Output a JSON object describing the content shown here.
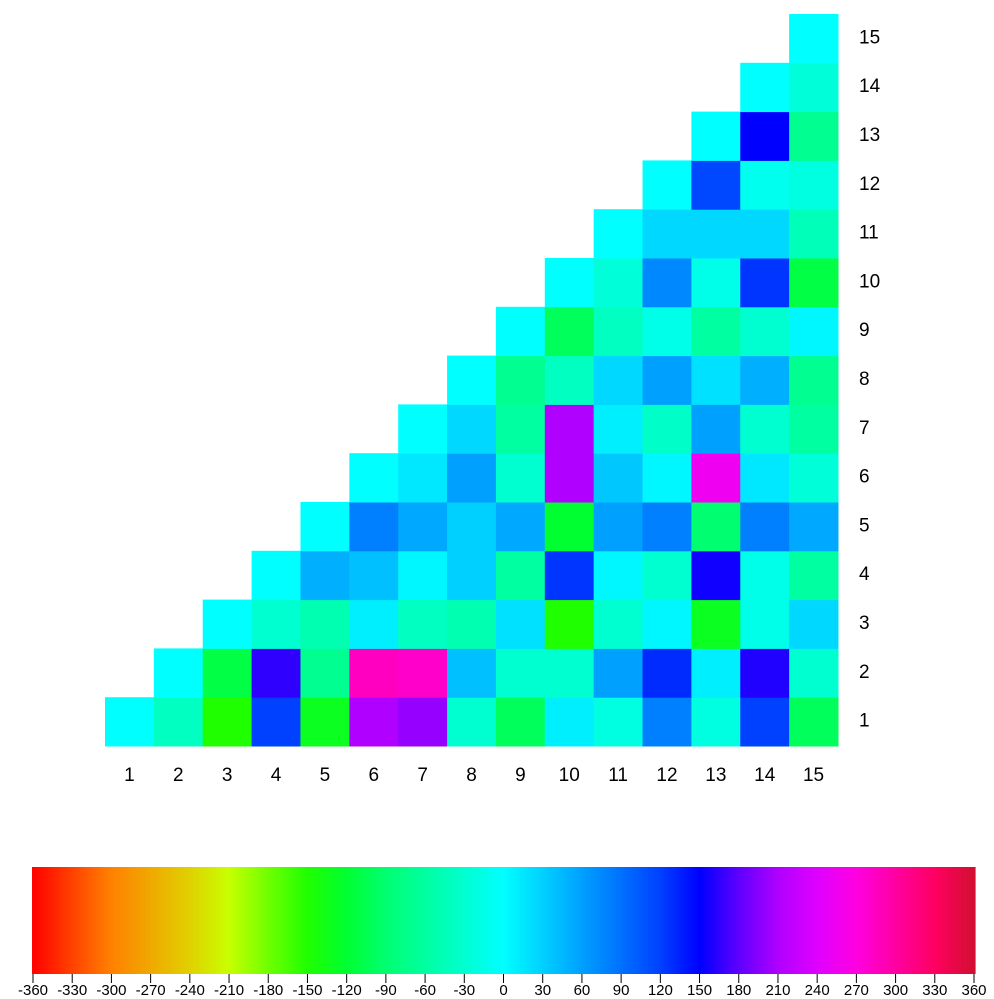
{
  "chart_data": {
    "type": "heatmap",
    "x_categories": [
      1,
      2,
      3,
      4,
      5,
      6,
      7,
      8,
      9,
      10,
      11,
      12,
      13,
      14,
      15
    ],
    "y_categories": [
      1,
      2,
      3,
      4,
      5,
      6,
      7,
      8,
      9,
      10,
      11,
      12,
      13,
      14,
      15
    ],
    "values": [
      [
        0,
        -40,
        -150,
        120,
        -130,
        210,
        200,
        -30,
        -100,
        10,
        -20,
        80,
        -20,
        120,
        -100
      ],
      [
        null,
        0,
        -110,
        165,
        -70,
        285,
        280,
        40,
        -30,
        -30,
        60,
        130,
        10,
        160,
        -30
      ],
      [
        null,
        null,
        0,
        -30,
        -50,
        10,
        -40,
        -50,
        20,
        -150,
        -30,
        5,
        -130,
        -15,
        25
      ],
      [
        null,
        null,
        null,
        0,
        50,
        40,
        5,
        30,
        -60,
        125,
        5,
        -30,
        155,
        -15,
        -60
      ],
      [
        null,
        null,
        null,
        null,
        0,
        80,
        55,
        30,
        55,
        -120,
        60,
        80,
        -90,
        80,
        55
      ],
      [
        null,
        null,
        null,
        null,
        null,
        0,
        15,
        60,
        -30,
        210,
        35,
        5,
        255,
        15,
        -25
      ],
      [
        null,
        null,
        null,
        null,
        null,
        null,
        0,
        25,
        -60,
        210,
        10,
        -35,
        60,
        -30,
        -60
      ],
      [
        null,
        null,
        null,
        null,
        null,
        null,
        null,
        0,
        -70,
        -40,
        25,
        60,
        20,
        50,
        -70
      ],
      [
        null,
        null,
        null,
        null,
        null,
        null,
        null,
        null,
        0,
        -100,
        -40,
        -15,
        -60,
        -30,
        5
      ],
      [
        null,
        null,
        null,
        null,
        null,
        null,
        null,
        null,
        null,
        0,
        -25,
        75,
        -15,
        125,
        -110
      ],
      [
        null,
        null,
        null,
        null,
        null,
        null,
        null,
        null,
        null,
        null,
        0,
        25,
        25,
        25,
        -45
      ],
      [
        null,
        null,
        null,
        null,
        null,
        null,
        null,
        null,
        null,
        null,
        null,
        0,
        115,
        -10,
        -20
      ],
      [
        null,
        null,
        null,
        null,
        null,
        null,
        null,
        null,
        null,
        null,
        null,
        null,
        0,
        150,
        -70
      ],
      [
        null,
        null,
        null,
        null,
        null,
        null,
        null,
        null,
        null,
        null,
        null,
        null,
        null,
        0,
        -25
      ],
      [
        null,
        null,
        null,
        null,
        null,
        null,
        null,
        null,
        null,
        null,
        null,
        null,
        null,
        null,
        0
      ]
    ],
    "clim": [
      -360,
      360
    ],
    "colormap": [
      "#ff0000",
      "#ff4000",
      "#ff8000",
      "#f0a800",
      "#e0d000",
      "#c8ff00",
      "#70ff00",
      "#20ff00",
      "#00ff30",
      "#00ff70",
      "#00ffa0",
      "#00ffd0",
      "#00ffff",
      "#00d0ff",
      "#00a0ff",
      "#0070ff",
      "#0040ff",
      "#0000ff",
      "#6000ff",
      "#b000ff",
      "#e000ff",
      "#ff00e0",
      "#ff00a0",
      "#ff0060",
      "#d01030"
    ],
    "colorbar_ticks": [
      -360,
      -330,
      -300,
      -270,
      -240,
      -210,
      -180,
      -150,
      -120,
      -90,
      -60,
      -30,
      0,
      30,
      60,
      90,
      120,
      150,
      180,
      210,
      240,
      270,
      300,
      330,
      360
    ]
  }
}
